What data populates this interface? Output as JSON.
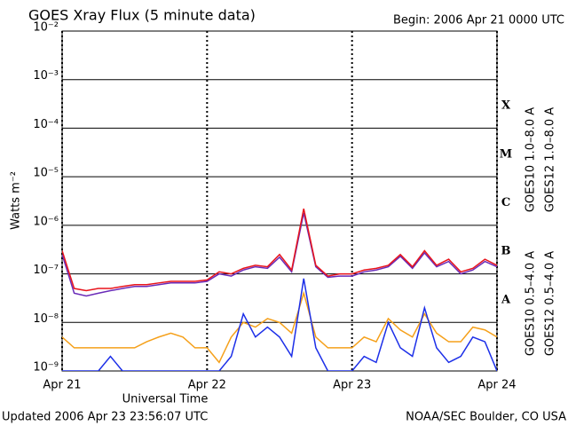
{
  "chart_data": {
    "type": "line",
    "title": "GOES Xray Flux (5 minute data)",
    "subtitle": "Begin:  2006 Apr 21 0000 UTC",
    "ylabel": "Watts m⁻²",
    "xlabel": "Universal Time",
    "footer_left": "Updated 2006 Apr 23 23:56:07 UTC",
    "footer_right": "NOAA/SEC Boulder, CO USA",
    "log_y": true,
    "grid": true,
    "xlim": [
      0,
      72
    ],
    "xticks": [
      {
        "value": 0,
        "label": "Apr 21"
      },
      {
        "value": 24,
        "label": "Apr 22"
      },
      {
        "value": 48,
        "label": "Apr 23"
      },
      {
        "value": 72,
        "label": "Apr 24"
      }
    ],
    "ylim": [
      1e-09,
      0.01
    ],
    "yticks": [
      {
        "value": 1e-09,
        "label": "10⁻⁹"
      },
      {
        "value": 1e-08,
        "label": "10⁻⁸"
      },
      {
        "value": 1e-07,
        "label": "10⁻⁷"
      },
      {
        "value": 1e-06,
        "label": "10⁻⁶"
      },
      {
        "value": 1e-05,
        "label": "10⁻⁵"
      },
      {
        "value": 0.0001,
        "label": "10⁻⁴"
      },
      {
        "value": 0.001,
        "label": "10⁻³"
      },
      {
        "value": 0.01,
        "label": "10⁻²"
      }
    ],
    "flare_classes": [
      {
        "label": "A",
        "value": 1e-08
      },
      {
        "label": "B",
        "value": 1e-07
      },
      {
        "label": "C",
        "value": 1e-06
      },
      {
        "label": "M",
        "value": 1e-05
      },
      {
        "label": "X",
        "value": 0.0001
      }
    ],
    "x": [
      0,
      2,
      4,
      6,
      8,
      10,
      12,
      14,
      16,
      18,
      20,
      22,
      24,
      26,
      28,
      30,
      32,
      34,
      36,
      38,
      40,
      42,
      44,
      46,
      48,
      50,
      52,
      54,
      56,
      58,
      60,
      62,
      64,
      66,
      68,
      70,
      72
    ],
    "series": [
      {
        "name": "GOES10 1.0–8.0 A",
        "color": "#6a2bb8",
        "values": [
          2.5e-07,
          4e-08,
          3.5e-08,
          4e-08,
          4.5e-08,
          5e-08,
          5.5e-08,
          5.5e-08,
          6e-08,
          6.5e-08,
          6.5e-08,
          6.5e-08,
          7e-08,
          1e-07,
          9e-08,
          1.2e-07,
          1.4e-07,
          1.3e-07,
          2.2e-07,
          1.1e-07,
          1.8e-06,
          1.4e-07,
          8.5e-08,
          9e-08,
          9e-08,
          1.1e-07,
          1.2e-07,
          1.4e-07,
          2.3e-07,
          1.3e-07,
          2.7e-07,
          1.4e-07,
          1.8e-07,
          1e-07,
          1.2e-07,
          1.8e-07,
          1.4e-07
        ]
      },
      {
        "name": "GOES12 1.0–8.0 A",
        "color": "#e8141c",
        "values": [
          3e-07,
          5e-08,
          4.5e-08,
          5e-08,
          5e-08,
          5.5e-08,
          6e-08,
          6e-08,
          6.5e-08,
          7e-08,
          7e-08,
          7e-08,
          7.5e-08,
          1.1e-07,
          1e-07,
          1.3e-07,
          1.5e-07,
          1.4e-07,
          2.5e-07,
          1.2e-07,
          2.2e-06,
          1.5e-07,
          9e-08,
          1e-07,
          1e-07,
          1.2e-07,
          1.3e-07,
          1.5e-07,
          2.5e-07,
          1.4e-07,
          3e-07,
          1.5e-07,
          2e-07,
          1.1e-07,
          1.3e-07,
          2e-07,
          1.5e-07
        ]
      },
      {
        "name": "GOES10 0.5–4.0 A",
        "color": "#f5a01a",
        "values": [
          5e-09,
          3e-09,
          3e-09,
          3e-09,
          3e-09,
          3e-09,
          3e-09,
          4e-09,
          5e-09,
          6e-09,
          5e-09,
          3e-09,
          3e-09,
          1.5e-09,
          5e-09,
          1e-08,
          8e-09,
          1.2e-08,
          1e-08,
          6e-09,
          4e-08,
          5e-09,
          3e-09,
          3e-09,
          3e-09,
          5e-09,
          4e-09,
          1.2e-08,
          7e-09,
          5e-09,
          1.5e-08,
          6e-09,
          4e-09,
          4e-09,
          8e-09,
          7e-09,
          5e-09
        ]
      },
      {
        "name": "GOES12 0.5–4.0 A",
        "color": "#1c2fe8",
        "values": [
          1e-09,
          1e-09,
          1e-09,
          1e-09,
          2e-09,
          1e-09,
          1e-09,
          1e-09,
          1e-09,
          1e-09,
          1e-09,
          1e-09,
          1e-09,
          1e-09,
          2e-09,
          1.5e-08,
          5e-09,
          8e-09,
          5e-09,
          2e-09,
          8e-08,
          3e-09,
          1e-09,
          1e-09,
          1e-09,
          2e-09,
          1.5e-09,
          1e-08,
          3e-09,
          2e-09,
          2e-08,
          3e-09,
          1.5e-09,
          2e-09,
          5e-09,
          4e-09,
          1e-09
        ]
      }
    ]
  }
}
